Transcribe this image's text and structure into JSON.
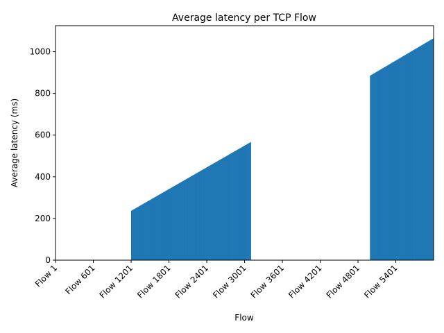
{
  "chart_data": {
    "type": "bar",
    "title": "Average latency per TCP Flow",
    "xlabel": "Flow",
    "ylabel": "Average latency (ms)",
    "x_count": 6000,
    "x_ticks": [
      {
        "index": 0,
        "label": "Flow 1"
      },
      {
        "index": 600,
        "label": "Flow 601"
      },
      {
        "index": 1200,
        "label": "Flow 1201"
      },
      {
        "index": 1800,
        "label": "Flow 1801"
      },
      {
        "index": 2400,
        "label": "Flow 2401"
      },
      {
        "index": 3000,
        "label": "Flow 3001"
      },
      {
        "index": 3600,
        "label": "Flow 3601"
      },
      {
        "index": 4200,
        "label": "Flow 4201"
      },
      {
        "index": 4800,
        "label": "Flow 4801"
      },
      {
        "index": 5400,
        "label": "Flow 5401"
      }
    ],
    "ylim": [
      0,
      1125
    ],
    "y_ticks": [
      0,
      200,
      400,
      600,
      800,
      1000
    ],
    "bar_color": "#1f77b4",
    "series": [
      {
        "segments": [
          {
            "from_flow": 1201,
            "to_flow": 3100,
            "start_value": 237,
            "end_value": 567
          },
          {
            "from_flow": 4991,
            "to_flow": 6000,
            "start_value": 885,
            "end_value": 1065
          }
        ]
      }
    ],
    "notes_visible_gaps": "no bars for Flow 1-1200 and Flow 3101-4990"
  }
}
